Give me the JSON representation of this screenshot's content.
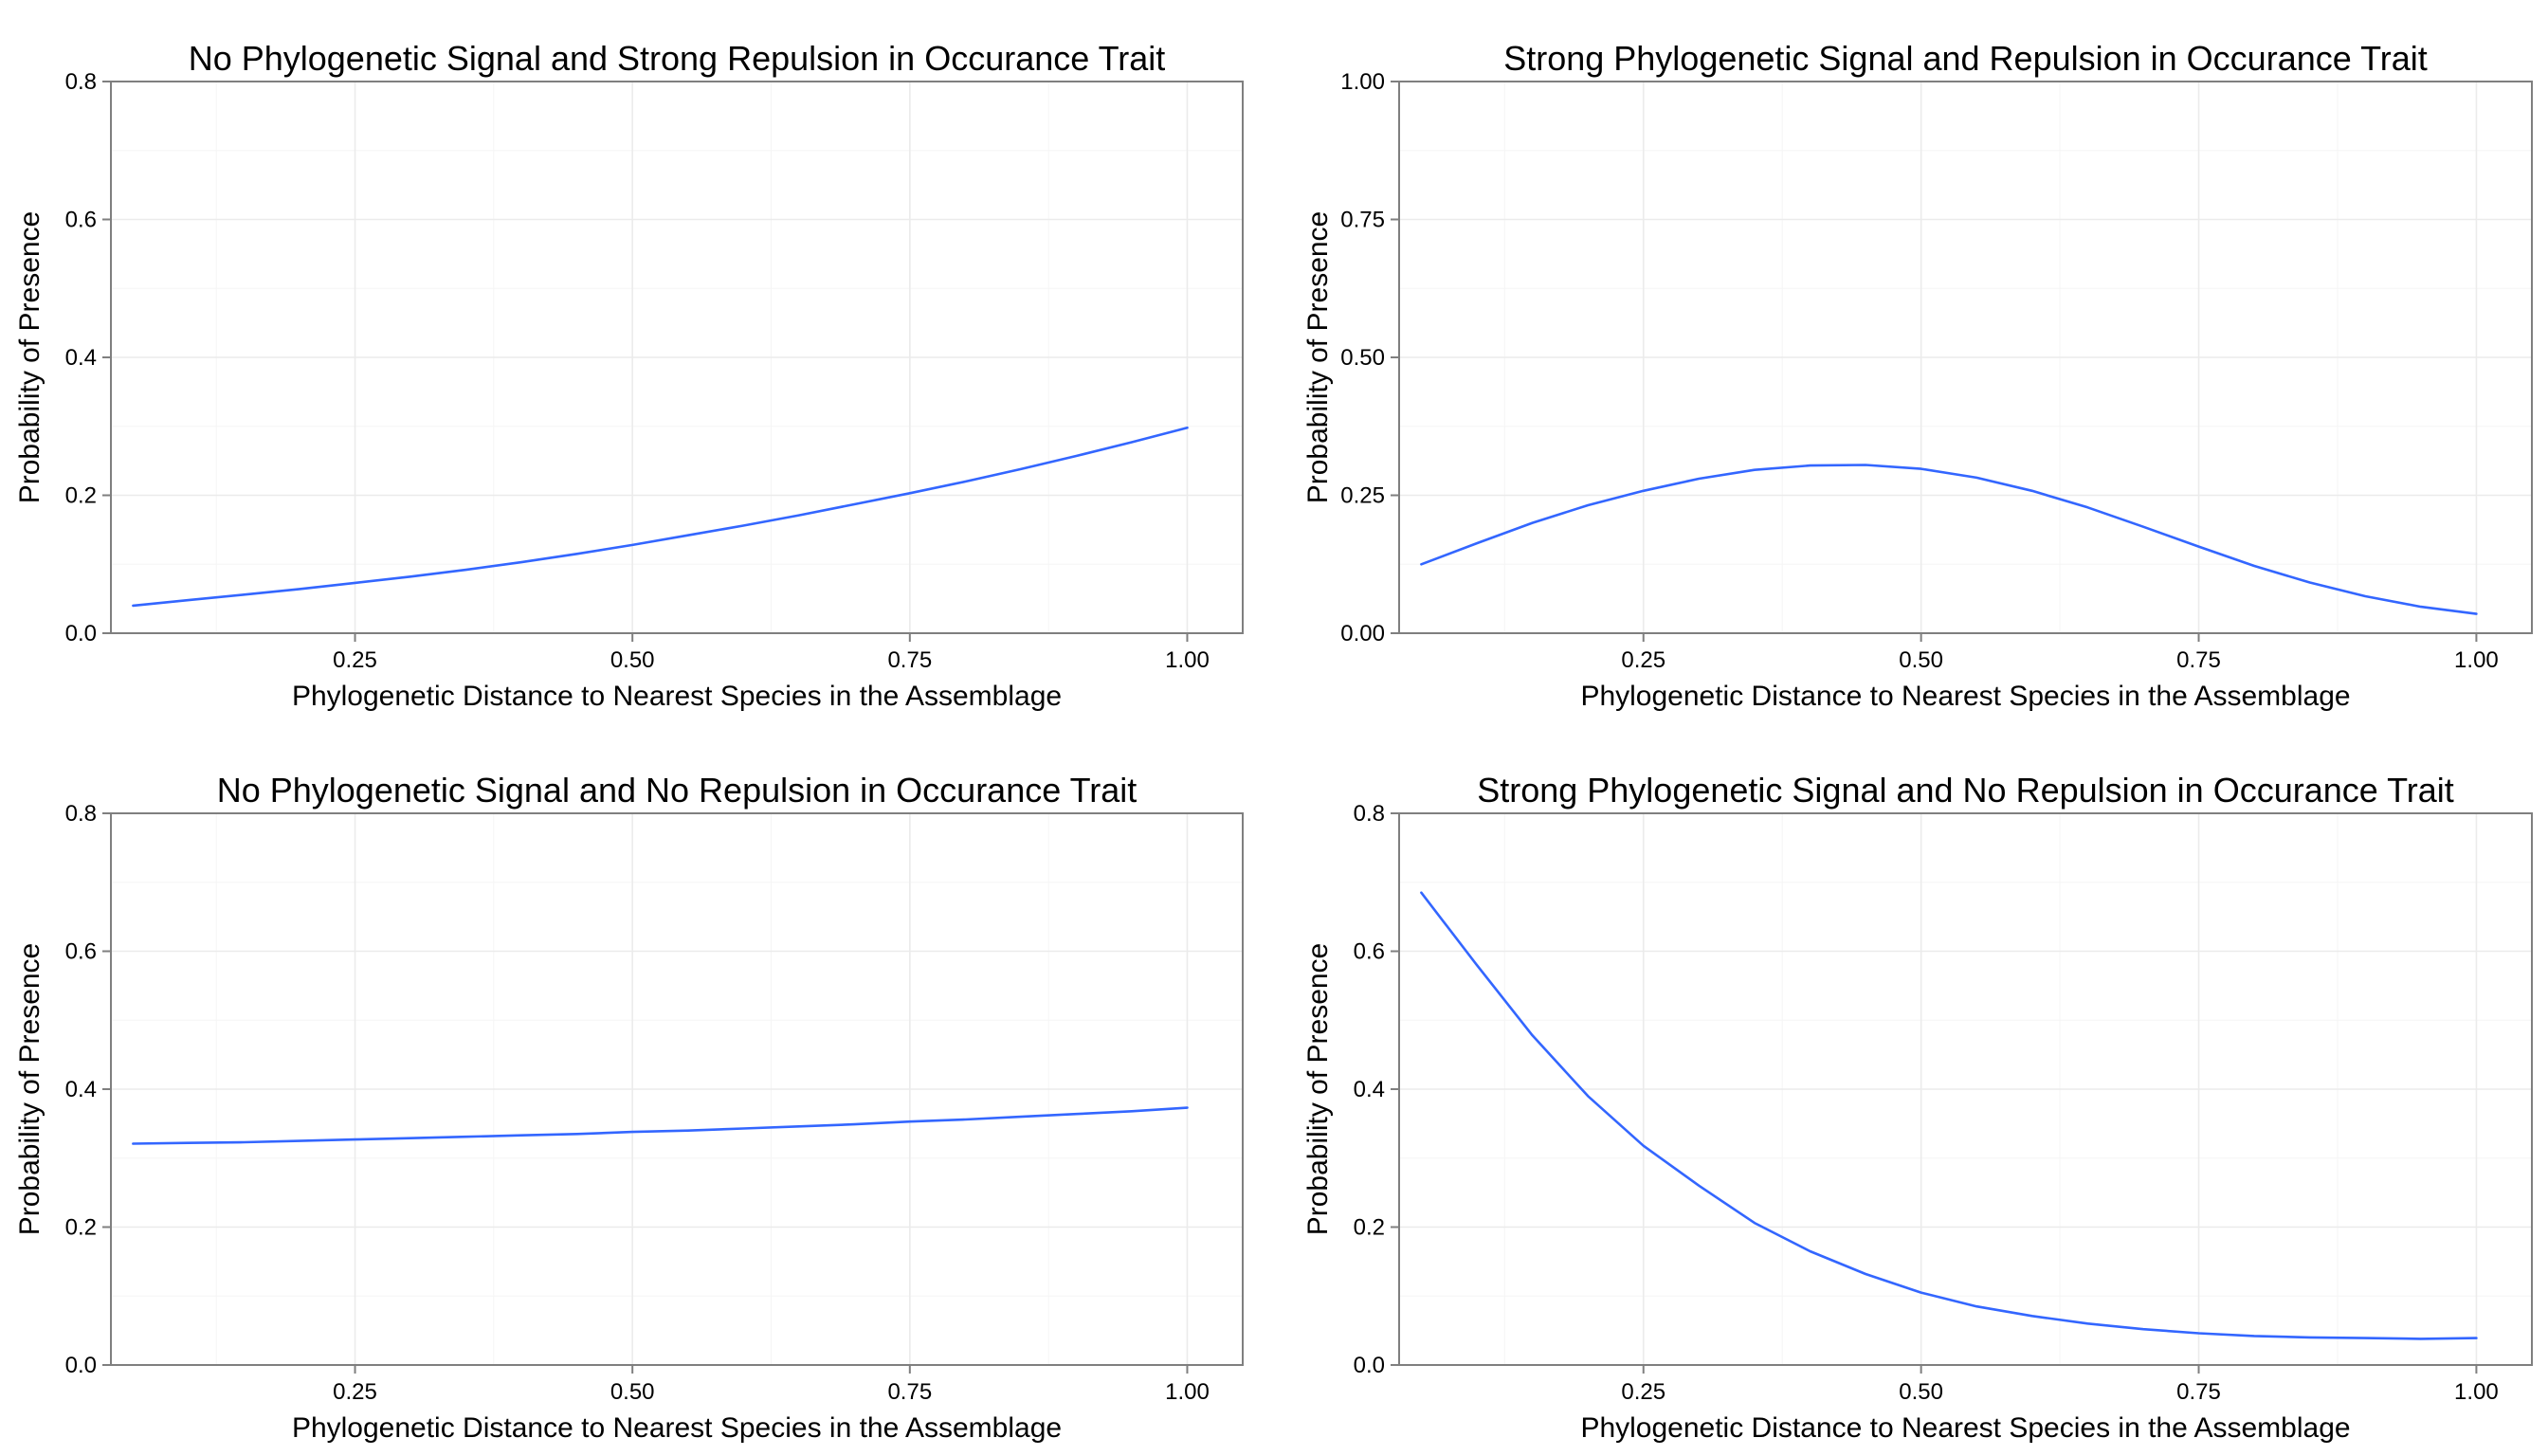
{
  "figure": {
    "background": "#ffffff",
    "line_color": "#3366ff"
  },
  "chart_data": [
    {
      "type": "line",
      "title": "No Phylogenetic Signal and Strong Repulsion in Occurance Trait",
      "xlabel": "Phylogenetic Distance to Nearest Species in the Assemblage",
      "ylabel": "Probability of Presence",
      "xlim": [
        0.03,
        1.05
      ],
      "ylim": [
        0,
        0.8
      ],
      "xticks": [
        0.25,
        0.5,
        0.75,
        1.0
      ],
      "xtick_labels": [
        "0.25",
        "0.50",
        "0.75",
        "1.00"
      ],
      "yticks": [
        0,
        0.2,
        0.4,
        0.6,
        0.8
      ],
      "ytick_labels": [
        "0.0",
        "0.2",
        "0.4",
        "0.6",
        "0.8"
      ],
      "grid": true,
      "series": [
        {
          "x": [
            0.05,
            0.1,
            0.15,
            0.2,
            0.25,
            0.3,
            0.35,
            0.4,
            0.45,
            0.5,
            0.55,
            0.6,
            0.65,
            0.7,
            0.75,
            0.8,
            0.85,
            0.9,
            0.95,
            1.0
          ],
          "y": [
            0.04,
            0.048,
            0.056,
            0.064,
            0.073,
            0.082,
            0.092,
            0.103,
            0.115,
            0.128,
            0.142,
            0.156,
            0.171,
            0.187,
            0.203,
            0.22,
            0.238,
            0.257,
            0.277,
            0.298
          ]
        }
      ]
    },
    {
      "type": "line",
      "title": "Strong Phylogenetic Signal and Repulsion in Occurance Trait",
      "xlabel": "Phylogenetic Distance to Nearest Species in the Assemblage",
      "ylabel": "Probability of Presence",
      "xlim": [
        0.03,
        1.05
      ],
      "ylim": [
        0,
        1.0
      ],
      "xticks": [
        0.25,
        0.5,
        0.75,
        1.0
      ],
      "xtick_labels": [
        "0.25",
        "0.50",
        "0.75",
        "1.00"
      ],
      "yticks": [
        0,
        0.25,
        0.5,
        0.75,
        1.0
      ],
      "ytick_labels": [
        "0.00",
        "0.25",
        "0.50",
        "0.75",
        "1.00"
      ],
      "grid": true,
      "series": [
        {
          "x": [
            0.05,
            0.1,
            0.15,
            0.2,
            0.25,
            0.3,
            0.35,
            0.4,
            0.45,
            0.5,
            0.55,
            0.6,
            0.65,
            0.7,
            0.75,
            0.8,
            0.85,
            0.9,
            0.95,
            1.0
          ],
          "y": [
            0.125,
            0.163,
            0.2,
            0.232,
            0.258,
            0.28,
            0.296,
            0.304,
            0.305,
            0.298,
            0.282,
            0.258,
            0.228,
            0.193,
            0.157,
            0.122,
            0.092,
            0.067,
            0.048,
            0.035
          ]
        }
      ]
    },
    {
      "type": "line",
      "title": "No Phylogenetic Signal and No Repulsion in Occurance Trait",
      "xlabel": "Phylogenetic Distance to Nearest Species in the Assemblage",
      "ylabel": "Probability of Presence",
      "xlim": [
        0.03,
        1.05
      ],
      "ylim": [
        0,
        0.8
      ],
      "xticks": [
        0.25,
        0.5,
        0.75,
        1.0
      ],
      "xtick_labels": [
        "0.25",
        "0.50",
        "0.75",
        "1.00"
      ],
      "yticks": [
        0,
        0.2,
        0.4,
        0.6,
        0.8
      ],
      "ytick_labels": [
        "0.0",
        "0.2",
        "0.4",
        "0.6",
        "0.8"
      ],
      "grid": true,
      "series": [
        {
          "x": [
            0.05,
            0.1,
            0.15,
            0.2,
            0.25,
            0.3,
            0.35,
            0.4,
            0.45,
            0.5,
            0.55,
            0.6,
            0.65,
            0.7,
            0.75,
            0.8,
            0.85,
            0.9,
            0.95,
            1.0
          ],
          "y": [
            0.321,
            0.322,
            0.323,
            0.325,
            0.327,
            0.329,
            0.331,
            0.333,
            0.335,
            0.338,
            0.34,
            0.343,
            0.346,
            0.349,
            0.353,
            0.356,
            0.36,
            0.364,
            0.368,
            0.373
          ]
        }
      ]
    },
    {
      "type": "line",
      "title": "Strong Phylogenetic Signal and No Repulsion in Occurance Trait",
      "xlabel": "Phylogenetic Distance to Nearest Species in the Assemblage",
      "ylabel": "Probability of Presence",
      "xlim": [
        0.03,
        1.05
      ],
      "ylim": [
        0,
        0.8
      ],
      "xticks": [
        0.25,
        0.5,
        0.75,
        1.0
      ],
      "xtick_labels": [
        "0.25",
        "0.50",
        "0.75",
        "1.00"
      ],
      "yticks": [
        0,
        0.2,
        0.4,
        0.6,
        0.8
      ],
      "ytick_labels": [
        "0.0",
        "0.2",
        "0.4",
        "0.6",
        "0.8"
      ],
      "grid": true,
      "series": [
        {
          "x": [
            0.05,
            0.1,
            0.15,
            0.2,
            0.25,
            0.3,
            0.35,
            0.4,
            0.45,
            0.5,
            0.55,
            0.6,
            0.65,
            0.7,
            0.75,
            0.8,
            0.85,
            0.9,
            0.95,
            1.0
          ],
          "y": [
            0.685,
            0.58,
            0.478,
            0.39,
            0.318,
            0.26,
            0.206,
            0.165,
            0.132,
            0.105,
            0.085,
            0.071,
            0.06,
            0.052,
            0.046,
            0.042,
            0.04,
            0.039,
            0.038,
            0.039
          ]
        }
      ]
    }
  ]
}
